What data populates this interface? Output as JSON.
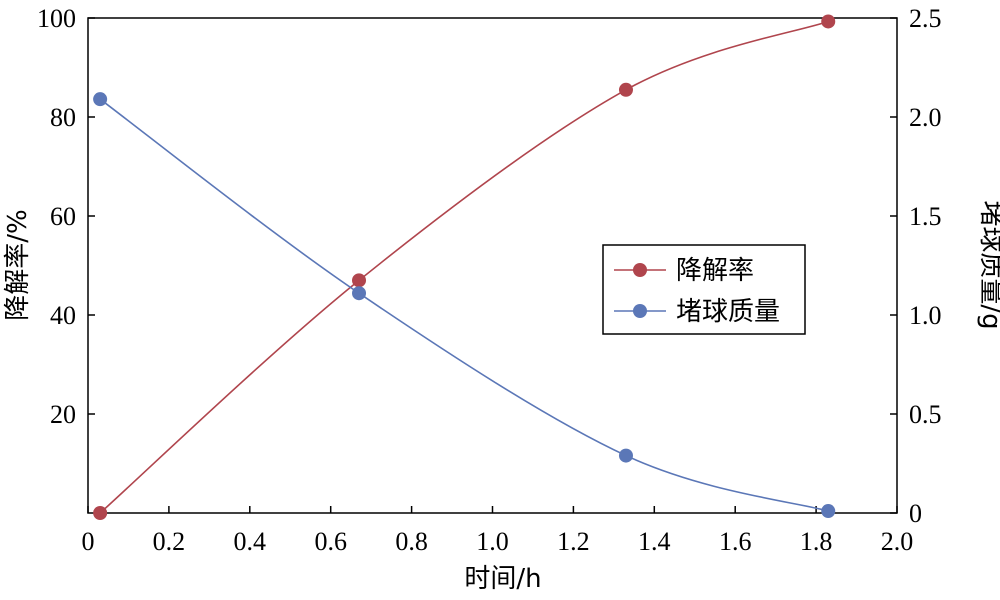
{
  "chart_data": {
    "type": "line",
    "xlabel": "时间/h",
    "ylabel_left": "降解率/%",
    "ylabel_right": "堵球质量/g",
    "xlim": [
      0,
      2.0
    ],
    "ylim_left": [
      0,
      100
    ],
    "ylim_right": [
      0,
      2.5
    ],
    "x_ticks": [
      "0",
      "0.2",
      "0.4",
      "0.6",
      "0.8",
      "1.0",
      "1.2",
      "1.4",
      "1.6",
      "1.8",
      "2.0"
    ],
    "y_left_ticks": [
      "20",
      "40",
      "60",
      "80",
      "100"
    ],
    "y_right_ticks": [
      "0",
      "0.5",
      "1.0",
      "1.5",
      "2.0",
      "2.5"
    ],
    "grid": false,
    "legend_position": "center-right",
    "series": [
      {
        "name": "降解率",
        "axis": "left",
        "color": "#b0454d",
        "x": [
          0.03,
          0.67,
          1.33,
          1.83
        ],
        "y": [
          0,
          47,
          85.5,
          99.3
        ]
      },
      {
        "name": "堵球质量",
        "axis": "right",
        "color": "#5b77b7",
        "x": [
          0.03,
          0.67,
          1.33,
          1.83
        ],
        "y": [
          2.09,
          1.11,
          0.29,
          0.01
        ]
      }
    ]
  }
}
